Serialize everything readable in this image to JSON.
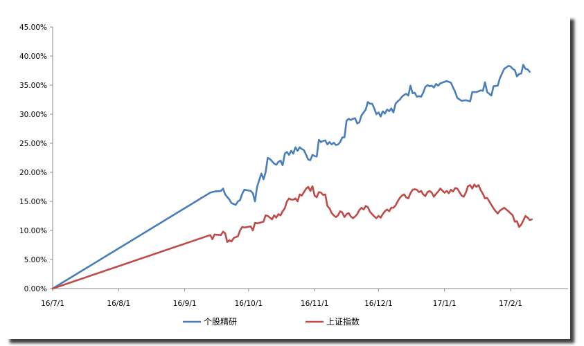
{
  "chart_data": {
    "type": "line",
    "title": "",
    "xlabel": "",
    "ylabel": "",
    "ylim": [
      0,
      0.45
    ],
    "y_ticks": [
      "0.00%",
      "5.00%",
      "10.00%",
      "15.00%",
      "20.00%",
      "25.00%",
      "30.00%",
      "35.00%",
      "40.00%",
      "45.00%"
    ],
    "x_ticks": [
      "16/7/1",
      "16/8/1",
      "16/9/1",
      "16/10/1",
      "16/11/1",
      "16/12/1",
      "17/1/1",
      "17/2/1"
    ],
    "x_range": [
      "2016-07-01",
      "2017-02-28"
    ],
    "grid": false,
    "legend": "bottom",
    "series": [
      {
        "name": "个股精研",
        "color": "#4a7ebb",
        "points": [
          [
            "2016-07-01",
            0.0
          ],
          [
            "2016-09-13",
            0.165
          ],
          [
            "2016-09-15",
            0.167
          ],
          [
            "2016-09-18",
            0.168
          ],
          [
            "2016-09-19",
            0.172
          ],
          [
            "2016-09-20",
            0.162
          ],
          [
            "2016-09-22",
            0.153
          ],
          [
            "2016-09-23",
            0.147
          ],
          [
            "2016-09-25",
            0.144
          ],
          [
            "2016-09-26",
            0.15
          ],
          [
            "2016-09-27",
            0.152
          ],
          [
            "2016-09-28",
            0.163
          ],
          [
            "2016-09-29",
            0.17
          ],
          [
            "2016-10-02",
            0.168
          ],
          [
            "2016-10-03",
            0.164
          ],
          [
            "2016-10-04",
            0.15
          ],
          [
            "2016-10-05",
            0.175
          ],
          [
            "2016-10-07",
            0.198
          ],
          [
            "2016-10-08",
            0.188
          ],
          [
            "2016-10-09",
            0.2
          ],
          [
            "2016-10-10",
            0.225
          ],
          [
            "2016-10-11",
            0.223
          ],
          [
            "2016-10-13",
            0.215
          ],
          [
            "2016-10-14",
            0.213
          ],
          [
            "2016-10-15",
            0.218
          ],
          [
            "2016-10-16",
            0.22
          ],
          [
            "2016-10-17",
            0.212
          ],
          [
            "2016-10-18",
            0.232
          ],
          [
            "2016-10-19",
            0.235
          ],
          [
            "2016-10-20",
            0.23
          ],
          [
            "2016-10-21",
            0.237
          ],
          [
            "2016-10-22",
            0.232
          ],
          [
            "2016-10-23",
            0.243
          ],
          [
            "2016-10-24",
            0.237
          ],
          [
            "2016-10-25",
            0.243
          ],
          [
            "2016-10-26",
            0.24
          ],
          [
            "2016-10-27",
            0.238
          ],
          [
            "2016-10-28",
            0.23
          ],
          [
            "2016-10-29",
            0.222
          ],
          [
            "2016-10-30",
            0.221
          ],
          [
            "2016-10-31",
            0.23
          ],
          [
            "2016-11-01",
            0.228
          ],
          [
            "2016-11-02",
            0.227
          ],
          [
            "2016-11-03",
            0.256
          ],
          [
            "2016-11-04",
            0.252
          ],
          [
            "2016-11-05",
            0.254
          ],
          [
            "2016-11-06",
            0.255
          ],
          [
            "2016-11-07",
            0.248
          ],
          [
            "2016-11-08",
            0.252
          ],
          [
            "2016-11-09",
            0.248
          ],
          [
            "2016-11-10",
            0.251
          ],
          [
            "2016-11-11",
            0.247
          ],
          [
            "2016-11-12",
            0.248
          ],
          [
            "2016-11-13",
            0.252
          ],
          [
            "2016-11-14",
            0.26
          ],
          [
            "2016-11-15",
            0.26
          ],
          [
            "2016-11-16",
            0.289
          ],
          [
            "2016-11-17",
            0.292
          ],
          [
            "2016-11-18",
            0.29
          ],
          [
            "2016-11-19",
            0.292
          ],
          [
            "2016-11-20",
            0.293
          ],
          [
            "2016-11-21",
            0.284
          ],
          [
            "2016-11-22",
            0.286
          ],
          [
            "2016-11-23",
            0.298
          ],
          [
            "2016-11-24",
            0.303
          ],
          [
            "2016-11-25",
            0.308
          ],
          [
            "2016-11-26",
            0.321
          ],
          [
            "2016-11-27",
            0.318
          ],
          [
            "2016-11-28",
            0.318
          ],
          [
            "2016-11-29",
            0.31
          ],
          [
            "2016-11-30",
            0.3
          ],
          [
            "2016-12-01",
            0.303
          ],
          [
            "2016-12-02",
            0.296
          ],
          [
            "2016-12-03",
            0.305
          ],
          [
            "2016-12-04",
            0.301
          ],
          [
            "2016-12-05",
            0.308
          ],
          [
            "2016-12-06",
            0.305
          ],
          [
            "2016-12-07",
            0.31
          ],
          [
            "2016-12-08",
            0.303
          ],
          [
            "2016-12-09",
            0.318
          ],
          [
            "2016-12-10",
            0.322
          ],
          [
            "2016-12-11",
            0.325
          ],
          [
            "2016-12-12",
            0.33
          ],
          [
            "2016-12-13",
            0.333
          ],
          [
            "2016-12-14",
            0.335
          ],
          [
            "2016-12-15",
            0.332
          ],
          [
            "2016-12-16",
            0.349
          ],
          [
            "2016-12-17",
            0.336
          ],
          [
            "2016-12-18",
            0.337
          ],
          [
            "2016-12-19",
            0.33
          ],
          [
            "2016-12-20",
            0.331
          ],
          [
            "2016-12-21",
            0.33
          ],
          [
            "2016-12-22",
            0.337
          ],
          [
            "2016-12-23",
            0.347
          ],
          [
            "2016-12-24",
            0.35
          ],
          [
            "2016-12-25",
            0.348
          ],
          [
            "2016-12-26",
            0.349
          ],
          [
            "2016-12-27",
            0.346
          ],
          [
            "2016-12-28",
            0.352
          ],
          [
            "2016-12-29",
            0.349
          ],
          [
            "2016-12-30",
            0.353
          ],
          [
            "2017-01-02",
            0.357
          ],
          [
            "2017-01-04",
            0.354
          ],
          [
            "2017-01-06",
            0.338
          ],
          [
            "2017-01-07",
            0.328
          ],
          [
            "2017-01-09",
            0.323
          ],
          [
            "2017-01-11",
            0.324
          ],
          [
            "2017-01-13",
            0.322
          ],
          [
            "2017-01-14",
            0.338
          ],
          [
            "2017-01-16",
            0.338
          ],
          [
            "2017-01-18",
            0.341
          ],
          [
            "2017-01-19",
            0.34
          ],
          [
            "2017-01-20",
            0.355
          ],
          [
            "2017-01-21",
            0.338
          ],
          [
            "2017-01-23",
            0.332
          ],
          [
            "2017-01-24",
            0.348
          ],
          [
            "2017-01-26",
            0.349
          ],
          [
            "2017-01-27",
            0.362
          ],
          [
            "2017-01-29",
            0.378
          ],
          [
            "2017-01-31",
            0.383
          ],
          [
            "2017-02-01",
            0.382
          ],
          [
            "2017-02-02",
            0.378
          ],
          [
            "2017-02-03",
            0.376
          ],
          [
            "2017-02-04",
            0.365
          ],
          [
            "2017-02-05",
            0.369
          ],
          [
            "2017-02-06",
            0.37
          ],
          [
            "2017-02-07",
            0.385
          ],
          [
            "2017-02-08",
            0.378
          ],
          [
            "2017-02-09",
            0.377
          ],
          [
            "2017-02-10",
            0.373
          ]
        ]
      },
      {
        "name": "上证指数",
        "color": "#be4b48",
        "points": [
          [
            "2016-07-01",
            0.0
          ],
          [
            "2016-09-13",
            0.092
          ],
          [
            "2016-09-14",
            0.085
          ],
          [
            "2016-09-15",
            0.093
          ],
          [
            "2016-09-18",
            0.092
          ],
          [
            "2016-09-19",
            0.098
          ],
          [
            "2016-09-20",
            0.095
          ],
          [
            "2016-09-21",
            0.08
          ],
          [
            "2016-09-22",
            0.083
          ],
          [
            "2016-09-23",
            0.081
          ],
          [
            "2016-09-24",
            0.087
          ],
          [
            "2016-09-26",
            0.09
          ],
          [
            "2016-09-27",
            0.1
          ],
          [
            "2016-09-28",
            0.106
          ],
          [
            "2016-09-29",
            0.105
          ],
          [
            "2016-10-02",
            0.107
          ],
          [
            "2016-10-03",
            0.1
          ],
          [
            "2016-10-04",
            0.113
          ],
          [
            "2016-10-05",
            0.112
          ],
          [
            "2016-10-07",
            0.114
          ],
          [
            "2016-10-08",
            0.115
          ],
          [
            "2016-10-09",
            0.126
          ],
          [
            "2016-10-10",
            0.125
          ],
          [
            "2016-10-11",
            0.122
          ],
          [
            "2016-10-12",
            0.119
          ],
          [
            "2016-10-13",
            0.126
          ],
          [
            "2016-10-14",
            0.122
          ],
          [
            "2016-10-15",
            0.128
          ],
          [
            "2016-10-16",
            0.126
          ],
          [
            "2016-10-17",
            0.133
          ],
          [
            "2016-10-18",
            0.138
          ],
          [
            "2016-10-19",
            0.15
          ],
          [
            "2016-10-20",
            0.155
          ],
          [
            "2016-10-21",
            0.153
          ],
          [
            "2016-10-22",
            0.153
          ],
          [
            "2016-10-23",
            0.155
          ],
          [
            "2016-10-24",
            0.15
          ],
          [
            "2016-10-25",
            0.162
          ],
          [
            "2016-10-26",
            0.16
          ],
          [
            "2016-10-27",
            0.166
          ],
          [
            "2016-10-28",
            0.172
          ],
          [
            "2016-10-29",
            0.175
          ],
          [
            "2016-10-30",
            0.168
          ],
          [
            "2016-10-31",
            0.176
          ],
          [
            "2016-11-01",
            0.16
          ],
          [
            "2016-11-02",
            0.157
          ],
          [
            "2016-11-03",
            0.166
          ],
          [
            "2016-11-04",
            0.165
          ],
          [
            "2016-11-05",
            0.161
          ],
          [
            "2016-11-06",
            0.162
          ],
          [
            "2016-11-07",
            0.142
          ],
          [
            "2016-11-08",
            0.138
          ],
          [
            "2016-11-09",
            0.13
          ],
          [
            "2016-11-10",
            0.126
          ],
          [
            "2016-11-11",
            0.123
          ],
          [
            "2016-11-12",
            0.126
          ],
          [
            "2016-11-13",
            0.133
          ],
          [
            "2016-11-14",
            0.131
          ],
          [
            "2016-11-15",
            0.123
          ],
          [
            "2016-11-16",
            0.128
          ],
          [
            "2016-11-17",
            0.13
          ],
          [
            "2016-11-18",
            0.124
          ],
          [
            "2016-11-19",
            0.121
          ],
          [
            "2016-11-20",
            0.124
          ],
          [
            "2016-11-21",
            0.128
          ],
          [
            "2016-11-22",
            0.135
          ],
          [
            "2016-11-23",
            0.139
          ],
          [
            "2016-11-24",
            0.136
          ],
          [
            "2016-11-25",
            0.142
          ],
          [
            "2016-11-26",
            0.14
          ],
          [
            "2016-11-27",
            0.132
          ],
          [
            "2016-11-28",
            0.128
          ],
          [
            "2016-11-29",
            0.124
          ],
          [
            "2016-11-30",
            0.121
          ],
          [
            "2016-12-01",
            0.125
          ],
          [
            "2016-12-02",
            0.122
          ],
          [
            "2016-12-03",
            0.128
          ],
          [
            "2016-12-04",
            0.133
          ],
          [
            "2016-12-05",
            0.136
          ],
          [
            "2016-12-06",
            0.133
          ],
          [
            "2016-12-07",
            0.139
          ],
          [
            "2016-12-08",
            0.139
          ],
          [
            "2016-12-09",
            0.143
          ],
          [
            "2016-12-10",
            0.15
          ],
          [
            "2016-12-11",
            0.156
          ],
          [
            "2016-12-12",
            0.16
          ],
          [
            "2016-12-13",
            0.162
          ],
          [
            "2016-12-14",
            0.157
          ],
          [
            "2016-12-15",
            0.155
          ],
          [
            "2016-12-16",
            0.164
          ],
          [
            "2016-12-17",
            0.17
          ],
          [
            "2016-12-18",
            0.171
          ],
          [
            "2016-12-19",
            0.17
          ],
          [
            "2016-12-20",
            0.166
          ],
          [
            "2016-12-21",
            0.168
          ],
          [
            "2016-12-22",
            0.162
          ],
          [
            "2016-12-23",
            0.159
          ],
          [
            "2016-12-24",
            0.166
          ],
          [
            "2016-12-25",
            0.168
          ],
          [
            "2016-12-26",
            0.165
          ],
          [
            "2016-12-27",
            0.158
          ],
          [
            "2016-12-28",
            0.163
          ],
          [
            "2016-12-29",
            0.167
          ],
          [
            "2016-12-30",
            0.172
          ],
          [
            "2017-01-01",
            0.165
          ],
          [
            "2017-01-02",
            0.168
          ],
          [
            "2017-01-03",
            0.164
          ],
          [
            "2017-01-04",
            0.17
          ],
          [
            "2017-01-05",
            0.167
          ],
          [
            "2017-01-06",
            0.173
          ],
          [
            "2017-01-07",
            0.172
          ],
          [
            "2017-01-08",
            0.166
          ],
          [
            "2017-01-09",
            0.16
          ],
          [
            "2017-01-10",
            0.158
          ],
          [
            "2017-01-11",
            0.165
          ],
          [
            "2017-01-12",
            0.176
          ],
          [
            "2017-01-13",
            0.178
          ],
          [
            "2017-01-14",
            0.172
          ],
          [
            "2017-01-15",
            0.179
          ],
          [
            "2017-01-16",
            0.175
          ],
          [
            "2017-01-17",
            0.178
          ],
          [
            "2017-01-18",
            0.169
          ],
          [
            "2017-01-19",
            0.163
          ],
          [
            "2017-01-20",
            0.155
          ],
          [
            "2017-01-21",
            0.156
          ],
          [
            "2017-01-23",
            0.144
          ],
          [
            "2017-01-24",
            0.138
          ],
          [
            "2017-01-25",
            0.133
          ],
          [
            "2017-01-26",
            0.129
          ],
          [
            "2017-01-27",
            0.134
          ],
          [
            "2017-01-29",
            0.139
          ],
          [
            "2017-01-31",
            0.133
          ],
          [
            "2017-02-02",
            0.126
          ],
          [
            "2017-02-03",
            0.115
          ],
          [
            "2017-02-04",
            0.116
          ],
          [
            "2017-02-05",
            0.106
          ],
          [
            "2017-02-06",
            0.11
          ],
          [
            "2017-02-07",
            0.117
          ],
          [
            "2017-02-08",
            0.125
          ],
          [
            "2017-02-09",
            0.122
          ],
          [
            "2017-02-10",
            0.118
          ],
          [
            "2017-02-11",
            0.119
          ]
        ]
      }
    ]
  }
}
